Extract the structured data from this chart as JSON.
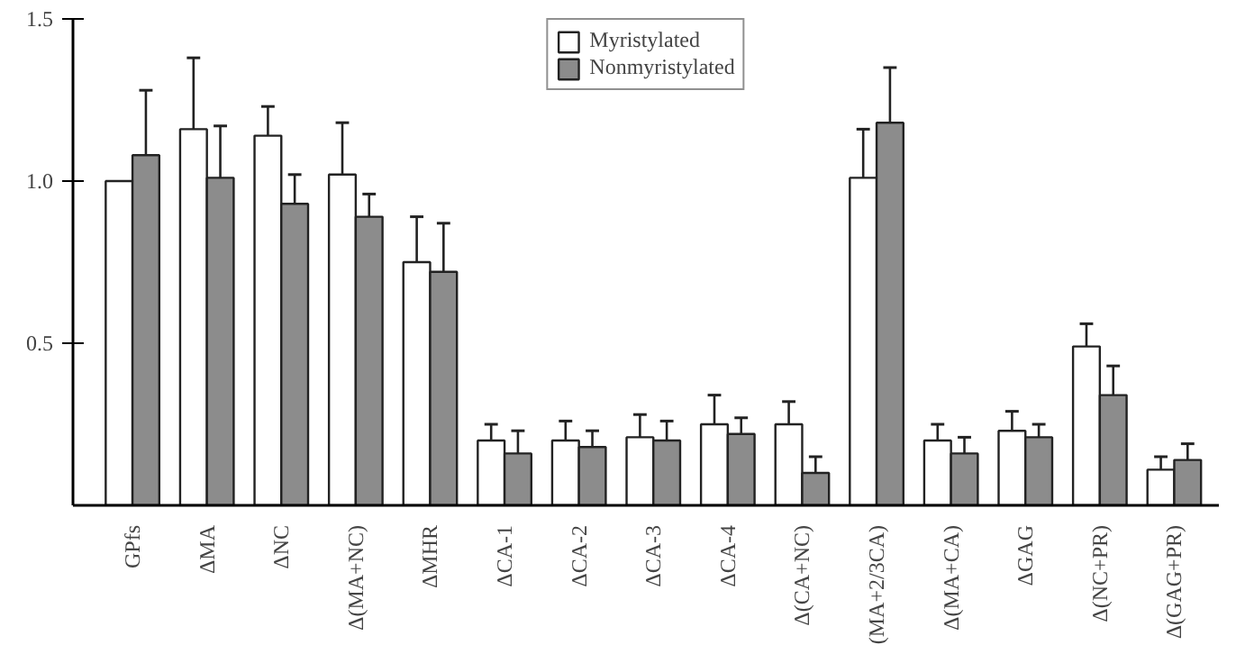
{
  "chart_data": {
    "type": "bar",
    "categories": [
      "GPfs",
      "ΔMA",
      "ΔNC",
      "Δ(MA+NC)",
      "ΔMHR",
      "ΔCA-1",
      "ΔCA-2",
      "ΔCA-3",
      "ΔCA-4",
      "Δ(CA+NC)",
      "(MA+2/3CA)",
      "Δ(MA+CA)",
      "ΔGAG",
      "Δ(NC+PR)",
      "Δ(GAG+PR)"
    ],
    "series": [
      {
        "name": "Myristylated",
        "color": "#ffffff",
        "values": [
          1.0,
          1.16,
          1.14,
          1.02,
          0.75,
          0.2,
          0.2,
          0.21,
          0.25,
          0.25,
          1.01,
          0.2,
          0.23,
          0.49,
          0.11
        ],
        "errors": [
          null,
          [
            1.16,
            1.38
          ],
          [
            1.14,
            1.23
          ],
          [
            1.02,
            1.18
          ],
          [
            0.75,
            0.89
          ],
          [
            0.2,
            0.25
          ],
          [
            0.2,
            0.26
          ],
          [
            0.21,
            0.28
          ],
          [
            0.25,
            0.34
          ],
          [
            0.25,
            0.32
          ],
          [
            1.01,
            1.16
          ],
          [
            0.2,
            0.25
          ],
          [
            0.23,
            0.29
          ],
          [
            0.49,
            0.56
          ],
          [
            0.11,
            0.15
          ]
        ]
      },
      {
        "name": "Nonmyristylated",
        "color": "#8c8c8c",
        "values": [
          1.08,
          1.01,
          0.93,
          0.89,
          0.72,
          0.16,
          0.18,
          0.2,
          0.22,
          0.1,
          1.18,
          0.16,
          0.21,
          0.34,
          0.14
        ],
        "errors": [
          [
            1.08,
            1.28
          ],
          [
            1.01,
            1.17
          ],
          [
            0.93,
            1.02
          ],
          [
            0.89,
            0.96
          ],
          [
            0.72,
            0.87
          ],
          [
            0.16,
            0.23
          ],
          [
            0.18,
            0.23
          ],
          [
            0.2,
            0.26
          ],
          [
            0.22,
            0.27
          ],
          [
            0.1,
            0.15
          ],
          [
            1.18,
            1.35
          ],
          [
            0.16,
            0.21
          ],
          [
            0.21,
            0.25
          ],
          [
            0.34,
            0.43
          ],
          [
            0.14,
            0.19
          ]
        ]
      }
    ],
    "ylim": [
      0,
      1.5
    ],
    "yticks": [
      0.5,
      {
        "value": 1,
        "label": "1.0"
      },
      1.5
    ],
    "grid": false,
    "legend": "top"
  }
}
